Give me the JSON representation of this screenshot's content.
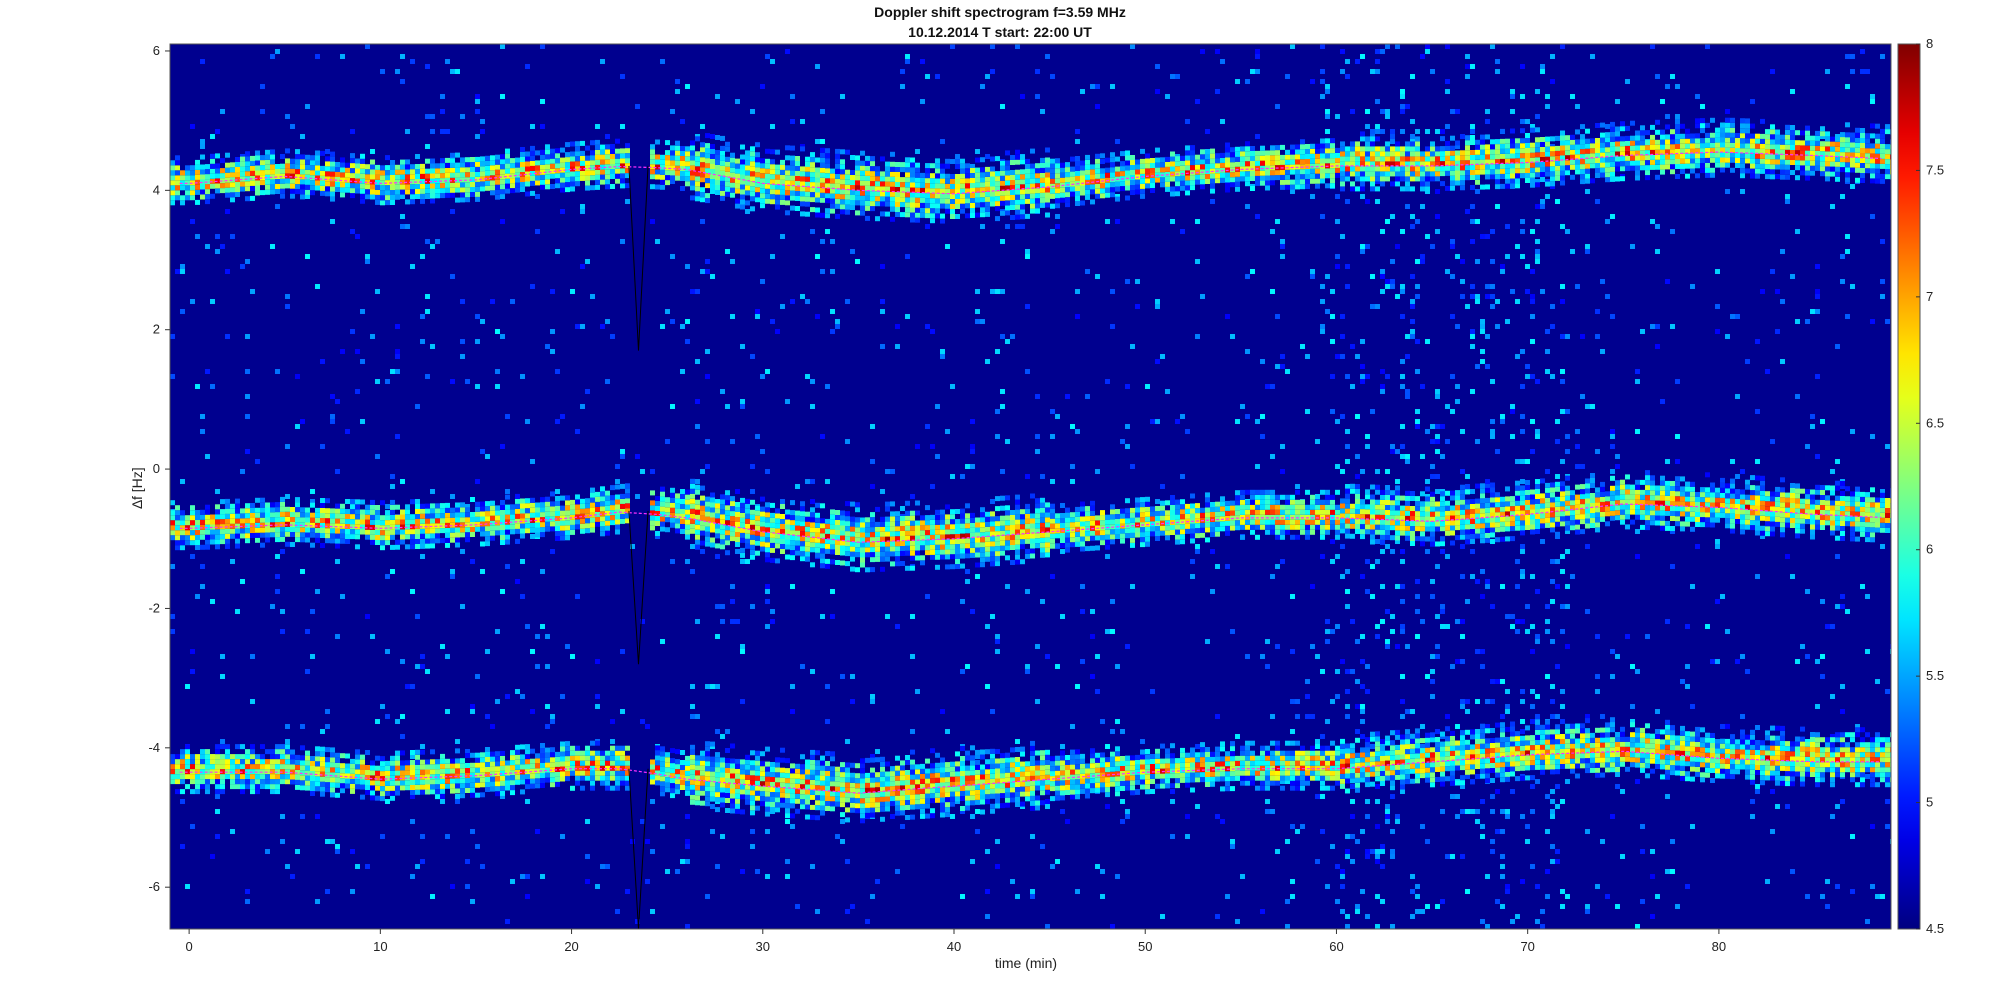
{
  "chart_data": {
    "type": "heatmap",
    "title": "Doppler shift spectrogram f=3.59 MHz",
    "subtitle": "10.12.2014   T start: 22:00 UT",
    "xlabel": "time (min)",
    "ylabel": "∆f [Hz]",
    "xlim": [
      -1,
      89
    ],
    "ylim": [
      -6.6,
      6.1
    ],
    "xticks": [
      0,
      10,
      20,
      30,
      40,
      50,
      60,
      70,
      80
    ],
    "yticks": [
      6,
      4,
      2,
      0,
      -2,
      -4,
      -6
    ],
    "colorbar": {
      "ticks": [
        8,
        7.5,
        7,
        6.5,
        6,
        5.5,
        5,
        4.5
      ],
      "min": 4.5,
      "max": 8,
      "colormap": "jet"
    },
    "bands": [
      {
        "t": [
          0,
          5,
          10,
          15,
          20,
          23,
          26,
          30,
          35,
          40,
          45,
          50,
          55,
          60,
          65,
          70,
          75,
          80,
          85,
          89
        ],
        "center": [
          4.1,
          4.2,
          4.1,
          4.15,
          4.3,
          4.35,
          4.3,
          4.1,
          4.0,
          3.95,
          4.05,
          4.2,
          4.3,
          4.35,
          4.35,
          4.4,
          4.5,
          4.55,
          4.5,
          4.45
        ]
      },
      {
        "t": [
          0,
          5,
          10,
          15,
          20,
          23,
          26,
          30,
          35,
          40,
          45,
          50,
          55,
          60,
          65,
          70,
          75,
          80,
          85,
          89
        ],
        "center": [
          -0.85,
          -0.8,
          -0.85,
          -0.8,
          -0.7,
          -0.6,
          -0.7,
          -0.9,
          -1.05,
          -1.0,
          -0.9,
          -0.8,
          -0.7,
          -0.7,
          -0.75,
          -0.65,
          -0.5,
          -0.55,
          -0.65,
          -0.7
        ]
      },
      {
        "t": [
          0,
          5,
          10,
          15,
          20,
          23,
          26,
          30,
          35,
          40,
          45,
          50,
          55,
          60,
          65,
          70,
          75,
          80,
          85,
          89
        ],
        "center": [
          -4.35,
          -4.35,
          -4.45,
          -4.4,
          -4.3,
          -4.3,
          -4.45,
          -4.55,
          -4.65,
          -4.55,
          -4.45,
          -4.35,
          -4.3,
          -4.3,
          -4.2,
          -4.1,
          -4.05,
          -4.15,
          -4.2,
          -4.2
        ]
      }
    ],
    "dropouts": [
      {
        "t0": 23.0,
        "t1": 24.0,
        "y_top": 1.7,
        "y_bottom": -6.6
      }
    ]
  }
}
